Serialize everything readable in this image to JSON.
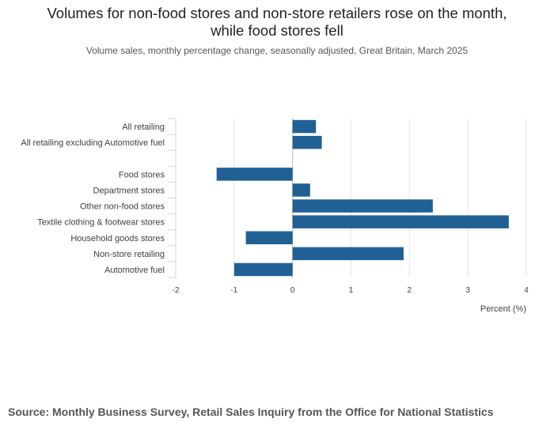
{
  "chart_data": {
    "type": "bar",
    "orientation": "horizontal",
    "title_lines": [
      "Volumes for non-food stores and non-store retailers rose on the month,",
      "while food stores fell"
    ],
    "subtitle": "Volume sales, monthly percentage change, seasonally adjusted, Great Britain, March 2025",
    "categories": [
      "All retailing",
      "All retailing excluding Automotive fuel",
      "",
      "Food stores",
      "Department stores",
      "Other non-food stores",
      "Textile clothing & footwear stores",
      "Household goods stores",
      "Non-store retailing",
      "Automotive fuel"
    ],
    "values": [
      0.4,
      0.5,
      null,
      -1.3,
      0.3,
      2.4,
      3.7,
      -0.8,
      1.9,
      -1.0
    ],
    "xlabel": "Percent (%)",
    "ylabel": "",
    "xlim": [
      -2,
      4
    ],
    "xticks": [
      -2,
      -1,
      0,
      1,
      2,
      3,
      4
    ],
    "grid": true,
    "bar_color": "#206095"
  },
  "source": "Source: Monthly Business Survey, Retail Sales Inquiry from the Office for National Statistics"
}
